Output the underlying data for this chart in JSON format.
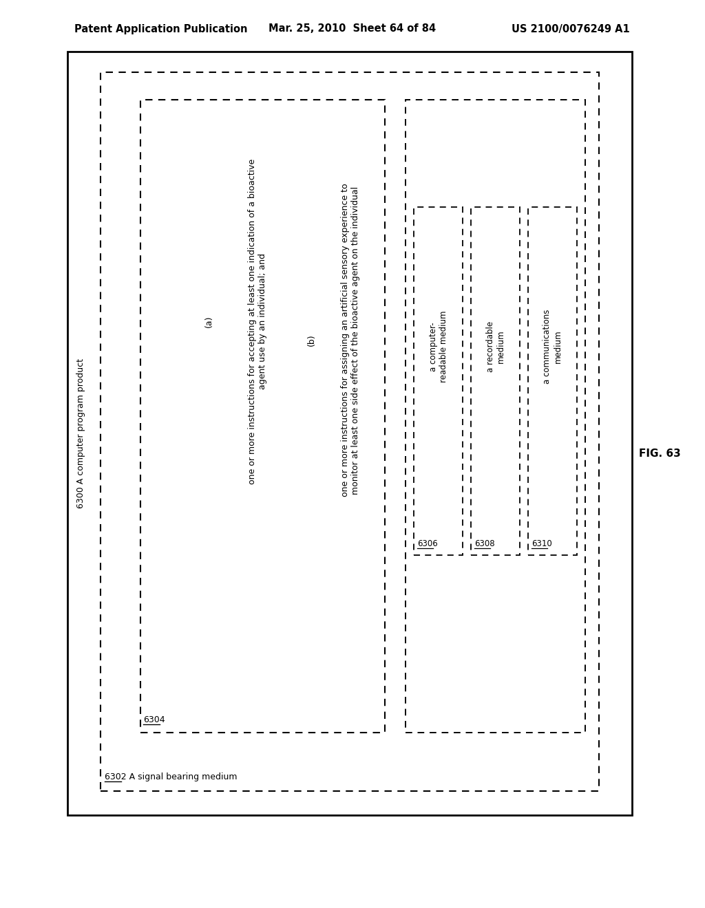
{
  "header_left": "Patent Application Publication",
  "header_center": "Mar. 25, 2010  Sheet 64 of 84",
  "header_right": "US 2100/0076249 A1",
  "fig_label": "FIG. 63",
  "label_6300": "6300",
  "text_6300": "A computer program product",
  "label_6302": "6302",
  "text_6302": "A signal bearing medium",
  "label_6304": "6304",
  "item_a_label": "(a)",
  "item_a_line1": "one or more instructions for accepting at least one indication of a bioactive",
  "item_a_line2": "agent use by an individual; and",
  "item_b_label": "(b)",
  "item_b_line1": "one or more instructions for assigning an artificial sensory experience to",
  "item_b_line2": "monitor at least one side effect of the bioactive agent on the individual",
  "label_6306": "6306",
  "text_6306": "a computer-\nreadable medium",
  "label_6308": "6308",
  "text_6308": "a recordable\nmedium",
  "label_6310": "6310",
  "text_6310": "a communications\nmedium",
  "bg_color": "#ffffff",
  "text_color": "#000000"
}
